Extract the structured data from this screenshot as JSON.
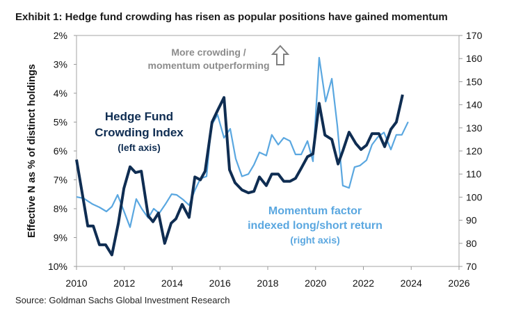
{
  "title": "Exhibit 1: Hedge fund crowding has risen as popular positions have gained momentum",
  "source": "Source: Goldman Sachs Global Investment Research",
  "chart_data": {
    "type": "line",
    "title": "Exhibit 1: Hedge fund crowding has risen as popular positions have gained momentum",
    "xlabel": "",
    "ylabel": "Effective N as % of distinct holdings",
    "xlim": [
      2010,
      2026
    ],
    "x_ticks": [
      "2010",
      "2012",
      "2014",
      "2016",
      "2018",
      "2020",
      "2022",
      "2024",
      "2026"
    ],
    "ylim_left": [
      10,
      2
    ],
    "left_ticks": [
      "2%",
      "3%",
      "4%",
      "5%",
      "6%",
      "7%",
      "8%",
      "9%",
      "10%"
    ],
    "ylim_right": [
      70,
      170
    ],
    "right_ticks": [
      "170",
      "160",
      "150",
      "140",
      "130",
      "120",
      "110",
      "100",
      "90",
      "80",
      "70"
    ],
    "annotations": {
      "top_line1": "More crowding /",
      "top_line2": "momentum outperforming",
      "hf_line1": "Hedge Fund",
      "hf_line2": "Crowding Index",
      "hf_line3": "(left axis)",
      "mom_line1": "Momentum factor",
      "mom_line2": "indexed long/short return",
      "mom_line3": "(right axis)"
    },
    "series": [
      {
        "name": "Hedge Fund Crowding Index",
        "axis": "left",
        "color": "#0f2d52",
        "x": [
          2010.0,
          2010.47,
          2010.7,
          2010.96,
          2011.22,
          2011.48,
          2011.75,
          2011.98,
          2012.24,
          2012.47,
          2012.71,
          2013.0,
          2013.2,
          2013.43,
          2013.69,
          2013.96,
          2014.16,
          2014.42,
          2014.71,
          2014.95,
          2015.18,
          2015.38,
          2015.67,
          2015.9,
          2016.17,
          2016.4,
          2016.63,
          2016.92,
          2017.19,
          2017.42,
          2017.65,
          2017.94,
          2018.17,
          2018.44,
          2018.67,
          2018.93,
          2019.16,
          2019.4,
          2019.66,
          2019.89,
          2020.15,
          2020.39,
          2020.68,
          2020.94,
          2021.14,
          2021.4,
          2021.69,
          2021.9,
          2022.13,
          2022.36,
          2022.65,
          2022.89,
          2023.15,
          2023.38,
          2023.64
        ],
        "y": [
          6.3,
          8.6,
          8.6,
          9.25,
          9.25,
          9.6,
          8.5,
          7.3,
          6.55,
          6.75,
          6.7,
          8.25,
          8.45,
          8.15,
          9.2,
          8.5,
          8.35,
          7.85,
          8.3,
          6.9,
          7.0,
          6.7,
          5.0,
          4.6,
          4.15,
          6.65,
          7.1,
          7.35,
          7.45,
          7.4,
          6.9,
          7.2,
          6.8,
          6.8,
          7.05,
          7.05,
          6.95,
          6.6,
          6.2,
          6.1,
          4.35,
          5.45,
          5.6,
          6.45,
          6.0,
          5.35,
          5.75,
          5.95,
          5.8,
          5.4,
          5.4,
          5.85,
          5.25,
          5.0,
          4.05
        ]
      },
      {
        "name": "Momentum factor indexed long/short return",
        "axis": "right",
        "color": "#5aa7e0",
        "x": [
          2010.0,
          2010.3,
          2010.67,
          2010.96,
          2011.25,
          2011.48,
          2011.72,
          2011.98,
          2012.24,
          2012.5,
          2012.73,
          2013.0,
          2013.23,
          2013.46,
          2013.72,
          2013.98,
          2014.19,
          2014.45,
          2014.71,
          2014.95,
          2015.18,
          2015.44,
          2015.64,
          2015.9,
          2016.17,
          2016.43,
          2016.66,
          2016.92,
          2017.19,
          2017.42,
          2017.65,
          2017.94,
          2018.17,
          2018.44,
          2018.67,
          2018.93,
          2019.16,
          2019.4,
          2019.66,
          2019.89,
          2020.15,
          2020.42,
          2020.68,
          2020.91,
          2021.14,
          2021.4,
          2021.63,
          2021.86,
          2022.13,
          2022.36,
          2022.6,
          2022.86,
          2023.15,
          2023.38,
          2023.61,
          2023.87
        ],
        "y": [
          100.1,
          99.5,
          97,
          95.6,
          93.8,
          95.9,
          101,
          94,
          87,
          99.2,
          95,
          91,
          95,
          93,
          97,
          101.3,
          101,
          99,
          96.5,
          103,
          108,
          109,
          131,
          135.7,
          125.7,
          129.6,
          116.7,
          109,
          110,
          114,
          119.4,
          118,
          127,
          122.7,
          125.7,
          124.3,
          118.5,
          118.5,
          124.3,
          115.5,
          160.4,
          141.4,
          151.3,
          131,
          105,
          104,
          113,
          113.7,
          116,
          122.7,
          126,
          128,
          120.6,
          127,
          127,
          132.6
        ]
      }
    ]
  }
}
